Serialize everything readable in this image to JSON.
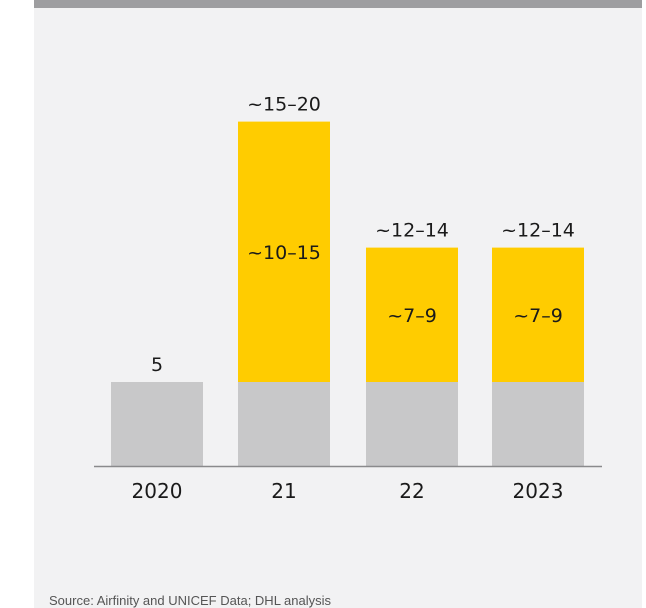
{
  "chart_data": {
    "type": "bar",
    "stacked": true,
    "categories": [
      "2020",
      "21",
      "22",
      "2023"
    ],
    "series": [
      {
        "values": [
          5,
          5,
          5,
          5
        ],
        "color": "#c8c8c9"
      },
      {
        "values": [
          0,
          15.5,
          8,
          8
        ],
        "color": "#ffcc00"
      }
    ],
    "segment_labels": [
      "",
      "~10–15",
      "~7–9",
      "~7–9"
    ],
    "total_labels": [
      "5",
      "~15–20",
      "~12–14",
      "~12–14"
    ],
    "ylim": [
      0,
      21
    ],
    "grid": false,
    "legend": "none",
    "title": "",
    "xlabel": "",
    "ylabel": ""
  },
  "source": "Source: Airfinity and UNICEF Data; DHL analysis"
}
